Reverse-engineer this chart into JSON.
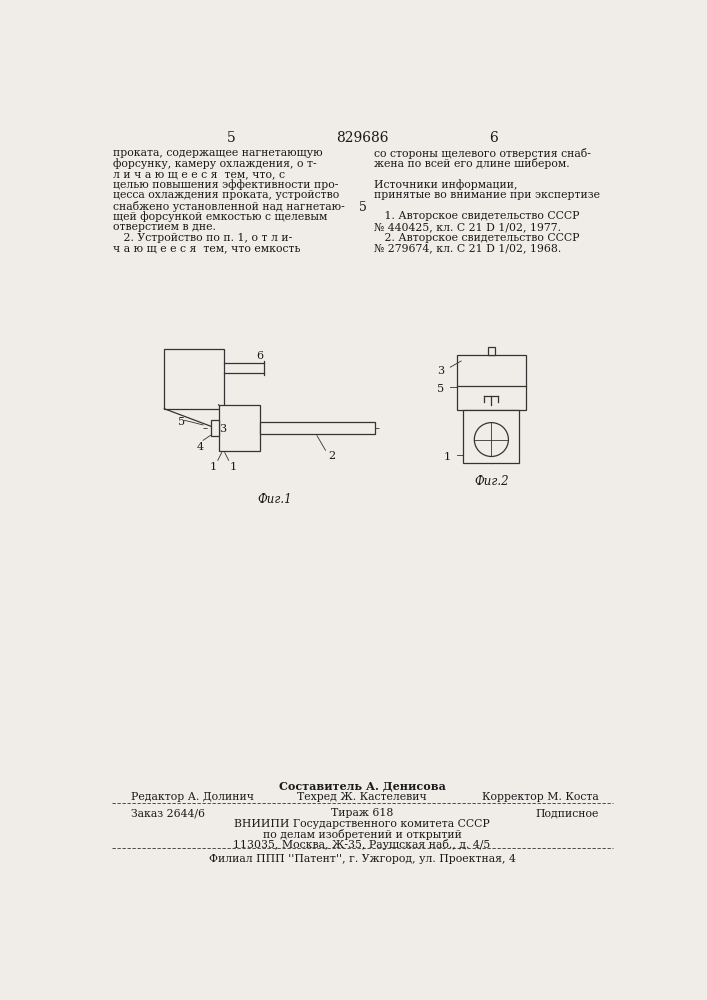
{
  "page_number_left": "5",
  "page_number_center": "829686",
  "page_number_right": "6",
  "col_left_text": [
    "проката, содержащее нагнетающую",
    "форсунку, камеру охлаждения, о т-",
    "л и ч а ю щ е е с я  тем, что, с",
    "целью повышения эффективности про-",
    "цесса охлаждения проката, устройство",
    "снабжено установленной над нагнетаю-",
    "щей форсункой емкостью с щелевым",
    "отверстием в дне.",
    "   2. Устройство по п. 1, о т л и-",
    "ч а ю щ е е с я  тем, что емкость"
  ],
  "col_right_text": [
    "со стороны щелевого отверстия снаб-",
    "жена по всей его длине шибером.",
    "",
    "Источники информации,",
    "принятые во внимание при экспертизе",
    "",
    "   1. Авторское свидетельство СССР",
    "№ 440425, кл. С 21 D 1/02, 1977.",
    "   2. Авторское свидетельство СССР",
    "№ 279674, кл. С 21 D 1/02, 1968."
  ],
  "fig1_caption": "Фиг.1",
  "fig2_caption": "Фиг.2",
  "footer_composer": "Составитель А. Денисова",
  "footer_editor": "Редактор А. Долинич",
  "footer_tech": "Техред Ж. Кастелевич",
  "footer_corrector": "Корректор М. Коста",
  "footer_order": "Заказ 2644/6",
  "footer_tirage": "Тираж 618",
  "footer_subscription": "Подписное",
  "footer_vniipи": "ВНИИПИ Государственного комитета СССР",
  "footer_affairs": "по делам изобретений и открытий",
  "footer_address": "113035, Москва, Ж-35, Раушская наб., д. 4/5",
  "footer_filial": "Филиал ППП ''Патент'', г. Ужгород, ул. Проектная, 4",
  "bg_color": "#f0ede8",
  "text_color": "#1a1a1a",
  "line_color": "#333333"
}
